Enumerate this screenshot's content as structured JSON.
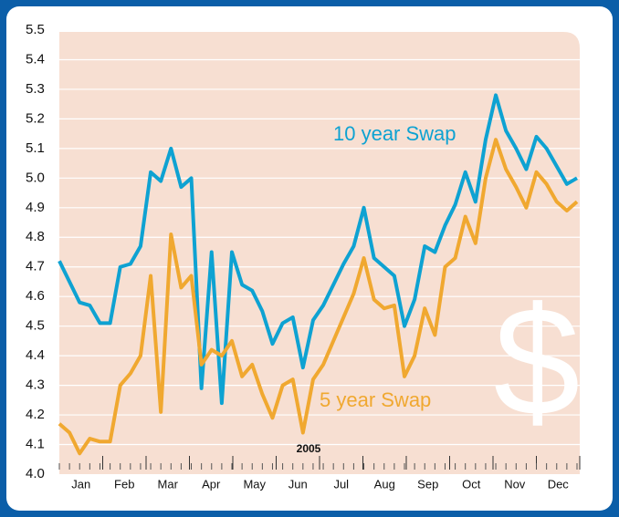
{
  "chart_data": {
    "type": "line",
    "ylim": [
      4.0,
      5.5
    ],
    "yticks": [
      {
        "value": 4.0,
        "label": "4.0"
      },
      4.1,
      4.2,
      4.3,
      4.4,
      4.5,
      4.6,
      4.7,
      4.8,
      4.9,
      {
        "value": 5.0,
        "label": "5.0"
      },
      5.1,
      5.2,
      5.3,
      5.4,
      5.5
    ],
    "x_axis_labels": [
      "Jan",
      "Feb",
      "Mar",
      "Apr",
      "May",
      "Jun",
      "Jul",
      "Aug",
      "Sep",
      "Oct",
      "Nov",
      "Dec"
    ],
    "x_annotation": "2005",
    "symbol": "$",
    "grid": true,
    "series": [
      {
        "name": "10 year Swap",
        "color": "#0ea2d2",
        "values": [
          4.72,
          4.65,
          4.58,
          4.57,
          4.51,
          4.51,
          4.7,
          4.71,
          4.77,
          5.02,
          4.99,
          5.1,
          4.97,
          5.0,
          4.29,
          4.75,
          4.24,
          4.75,
          4.64,
          4.62,
          4.55,
          4.44,
          4.51,
          4.53,
          4.36,
          4.52,
          4.57,
          4.64,
          4.71,
          4.77,
          4.9,
          4.73,
          4.7,
          4.67,
          4.5,
          4.59,
          4.77,
          4.75,
          4.84,
          4.91,
          5.02,
          4.92,
          5.13,
          5.28,
          5.16,
          5.1,
          5.03,
          5.14,
          5.1,
          5.04,
          4.98,
          5.0
        ]
      },
      {
        "name": "5 year Swap",
        "color": "#f0a830",
        "values": [
          4.17,
          4.14,
          4.07,
          4.12,
          4.11,
          4.11,
          4.3,
          4.34,
          4.4,
          4.67,
          4.21,
          4.81,
          4.63,
          4.67,
          4.37,
          4.42,
          4.4,
          4.45,
          4.33,
          4.37,
          4.27,
          4.19,
          4.3,
          4.32,
          4.14,
          4.32,
          4.37,
          4.45,
          4.53,
          4.61,
          4.73,
          4.59,
          4.56,
          4.57,
          4.33,
          4.4,
          4.56,
          4.47,
          4.7,
          4.73,
          4.87,
          4.78,
          5.0,
          5.13,
          5.03,
          4.97,
          4.9,
          5.02,
          4.98,
          4.92,
          4.89,
          4.92
        ]
      }
    ]
  }
}
